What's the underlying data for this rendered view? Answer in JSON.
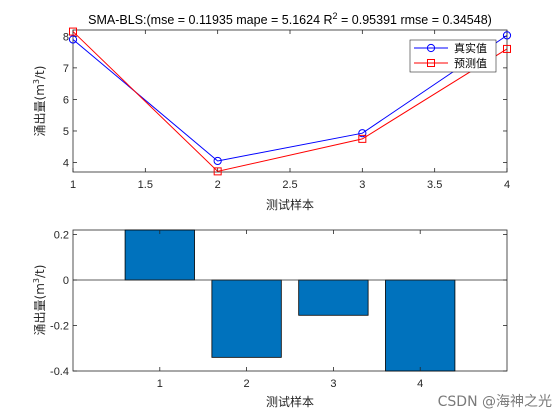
{
  "chart_data": [
    {
      "type": "line",
      "title_prefix": "SMA-BLS:(mse = 0.11935 mape = 5.1624  R",
      "title_sup": "2",
      "title_suffix": " = 0.95391 rmse = 0.34548)",
      "xlabel": "测试样本",
      "ylabel_prefix": "涌出量(m",
      "ylabel_sup": "3",
      "ylabel_suffix": "/t)",
      "xlim": [
        1,
        4
      ],
      "ylim": [
        3.7,
        8.2
      ],
      "xticks": [
        "1",
        "1.5",
        "2",
        "2.5",
        "3",
        "3.5",
        "4"
      ],
      "yticks": [
        "4",
        "5",
        "6",
        "7",
        "8"
      ],
      "x": [
        1,
        2,
        3,
        4
      ],
      "series": [
        {
          "name": "真实值",
          "values": [
            7.9,
            4.05,
            4.93,
            8.03
          ],
          "color": "#0000ff",
          "marker": "circle"
        },
        {
          "name": "预测值",
          "values": [
            8.15,
            3.72,
            4.75,
            7.6
          ],
          "color": "#ff0000",
          "marker": "square"
        }
      ],
      "legend": "top-right",
      "grid": false
    },
    {
      "type": "bar",
      "xlabel": "测试样本",
      "ylabel_prefix": "涌出量(m",
      "ylabel_sup": "3",
      "ylabel_suffix": "/t)",
      "categories": [
        "1",
        "2",
        "3",
        "4"
      ],
      "values": [
        0.22,
        -0.34,
        -0.155,
        -0.42
      ],
      "xlim": [
        0,
        5
      ],
      "ylim": [
        -0.4,
        0.22
      ],
      "yticks": [
        "0.2",
        "0",
        "-0.2",
        "-0.4"
      ],
      "bar_color": "#0072bd",
      "grid": false
    }
  ],
  "watermark": "CSDN @海神之光"
}
